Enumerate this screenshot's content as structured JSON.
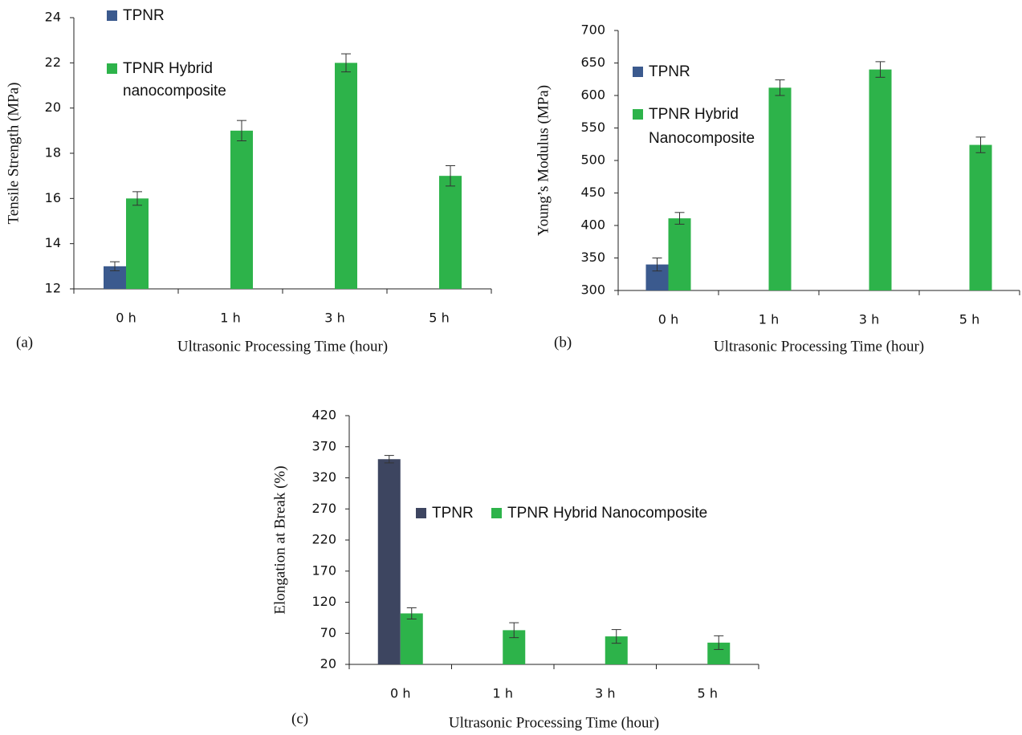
{
  "chart_data": [
    {
      "type": "bar",
      "label": "(a)",
      "y_label": "Tensile Strength (MPa)",
      "x_label": "Ultrasonic Processing Time  (hour)",
      "categories": [
        "0 h",
        "1 h",
        "3 h",
        "5 h"
      ],
      "series": [
        {
          "name": "TPNR",
          "color": "#3b5a8e",
          "values": [
            13,
            null,
            null,
            null
          ],
          "errors": [
            0.2,
            null,
            null,
            null
          ]
        },
        {
          "name": "TPNR Hybrid nanocomposite",
          "color": "#2db34a",
          "values": [
            16,
            19,
            22,
            17
          ],
          "errors": [
            0.3,
            0.45,
            0.4,
            0.45
          ]
        }
      ],
      "ylim": [
        12,
        24
      ],
      "yticks": [
        12,
        14,
        16,
        18,
        20,
        22,
        24
      ]
    },
    {
      "type": "bar",
      "label": "(b)",
      "y_label": "Young’s Modulus (MPa)",
      "x_label": "Ultrasonic Processing Time  (hour)",
      "categories": [
        "0 h",
        "1 h",
        "3 h",
        "5 h"
      ],
      "series": [
        {
          "name": "TPNR",
          "color": "#3b5a8e",
          "values": [
            340,
            null,
            null,
            null
          ],
          "errors": [
            10,
            null,
            null,
            null
          ]
        },
        {
          "name": "TPNR Hybrid Nanocomposite",
          "color": "#2db34a",
          "values": [
            411,
            612,
            640,
            524
          ],
          "errors": [
            9,
            12,
            12,
            12
          ]
        }
      ],
      "ylim": [
        300,
        700
      ],
      "yticks": [
        300,
        350,
        400,
        450,
        500,
        550,
        600,
        650,
        700
      ]
    },
    {
      "type": "bar",
      "label": "(c)",
      "y_label": "Elongation at Break (%)",
      "x_label": "Ultrasonic Processing Time  (hour)",
      "categories": [
        "0 h",
        "1 h",
        "3 h",
        "5 h"
      ],
      "series": [
        {
          "name": "TPNR",
          "color": "#3d4560",
          "values": [
            350,
            null,
            null,
            null
          ],
          "errors": [
            6,
            null,
            null,
            null
          ]
        },
        {
          "name": "TPNR Hybrid Nanocomposite",
          "color": "#2db34a",
          "values": [
            102,
            75,
            65,
            55
          ],
          "errors": [
            9,
            12,
            11,
            11
          ]
        }
      ],
      "ylim": [
        20,
        420
      ],
      "yticks": [
        20,
        70,
        120,
        170,
        220,
        270,
        320,
        370,
        420
      ]
    }
  ]
}
